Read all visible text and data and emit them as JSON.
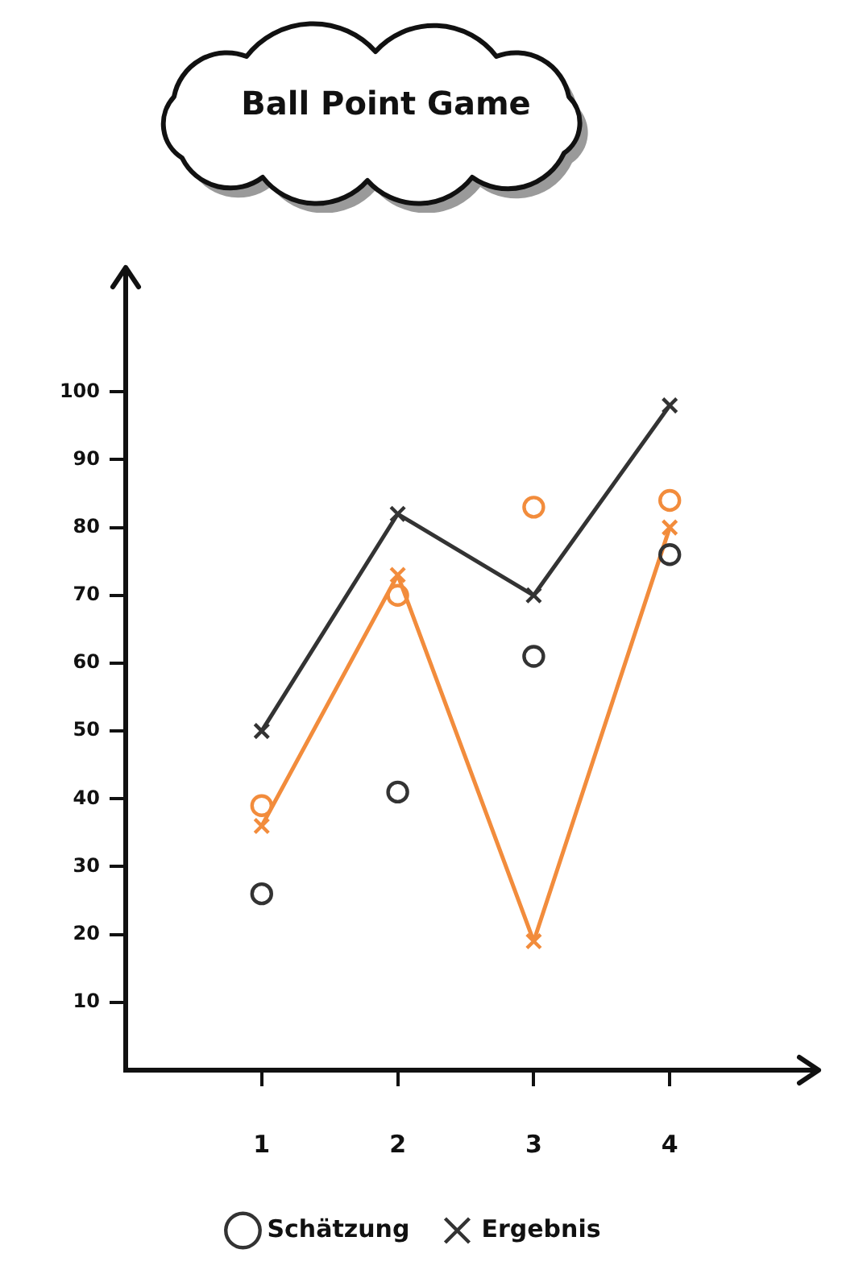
{
  "chart_data": {
    "type": "line",
    "title": "Ball Point Game",
    "categories": [
      "1",
      "2",
      "3",
      "4"
    ],
    "series": [
      {
        "name": "Schätzung",
        "type": "scatter",
        "marker": "circle",
        "color": "#333333",
        "values": [
          26,
          41,
          61,
          76
        ]
      },
      {
        "name": "Ergebnis",
        "marker": "cross",
        "color": "#333333",
        "values": [
          50,
          82,
          70,
          98
        ]
      },
      {
        "type": "scatter",
        "marker": "circle",
        "color": "#f28c3c",
        "values": [
          39,
          70,
          83,
          84
        ]
      },
      {
        "marker": "cross",
        "color": "#f28c3c",
        "values": [
          36,
          73,
          19,
          80
        ]
      }
    ],
    "ylim": [
      0,
      115
    ],
    "yticks": [
      10,
      20,
      30,
      40,
      50,
      60,
      70,
      80,
      90,
      100
    ],
    "grid": false,
    "legend": "bottom"
  }
}
